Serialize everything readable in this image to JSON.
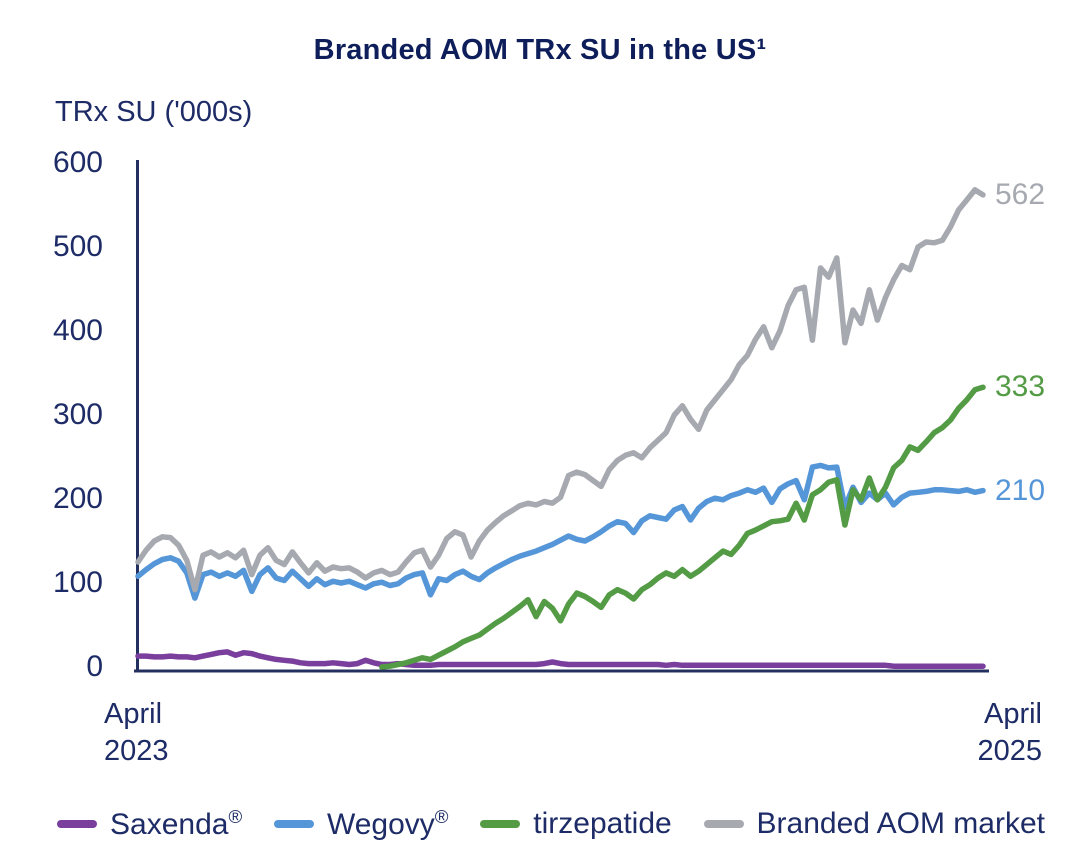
{
  "title": "Branded AOM TRx SU in the US¹",
  "colors": {
    "text_navy": "#1d2b66",
    "title_navy": "#0e1e5a",
    "axis_navy": "#23305f",
    "saxenda_purple": "#7a3f9d",
    "wegovy_blue": "#5596d8",
    "tirzepatide_green": "#539b44",
    "market_gray": "#a6a9af"
  },
  "chart_data": {
    "type": "line",
    "title": "Branded AOM TRx SU in the US¹",
    "y_axis_label": "TRx SU ('000s)",
    "ylim": [
      0,
      600
    ],
    "y_ticks": [
      600,
      500,
      400,
      300,
      200,
      100,
      0
    ],
    "grid": false,
    "legend_position": "bottom",
    "x_axis_note": "weekly points, April 2023 to April 2025",
    "x_start_label": {
      "line1": "April",
      "line2": "2023"
    },
    "x_end_label": {
      "line1": "April",
      "line2": "2025"
    },
    "series": [
      {
        "name": "Saxenda®",
        "color": "#7a3f9d",
        "end_label": null,
        "values": [
          13,
          13,
          12,
          12,
          13,
          12,
          12,
          11,
          13,
          15,
          17,
          18,
          14,
          17,
          16,
          13,
          11,
          9,
          8,
          7,
          5,
          4,
          4,
          4,
          5,
          4,
          3,
          4,
          8,
          5,
          3,
          3,
          4,
          3,
          2,
          2,
          2,
          3,
          3,
          3,
          3,
          3,
          3,
          3,
          3,
          3,
          3,
          3,
          3,
          3,
          4,
          6,
          4,
          3,
          3,
          3,
          3,
          3,
          3,
          3,
          3,
          3,
          3,
          3,
          3,
          2,
          3,
          2,
          2,
          2,
          2,
          2,
          2,
          2,
          2,
          2,
          2,
          2,
          2,
          2,
          2,
          2,
          2,
          2,
          2,
          2,
          2,
          2,
          2,
          2,
          2,
          2,
          2,
          1,
          1,
          1,
          1,
          1,
          1,
          1,
          1,
          1,
          1,
          1,
          1
        ]
      },
      {
        "name": "Wegovy®",
        "color": "#5596d8",
        "end_label": "210",
        "values": [
          108,
          116,
          123,
          128,
          130,
          126,
          112,
          82,
          110,
          113,
          108,
          112,
          108,
          115,
          90,
          110,
          118,
          106,
          103,
          114,
          105,
          96,
          105,
          98,
          102,
          100,
          102,
          98,
          94,
          99,
          101,
          97,
          99,
          106,
          110,
          112,
          86,
          105,
          103,
          110,
          114,
          108,
          104,
          112,
          118,
          123,
          128,
          132,
          135,
          138,
          142,
          146,
          151,
          156,
          152,
          150,
          155,
          161,
          168,
          173,
          171,
          160,
          174,
          180,
          178,
          176,
          187,
          191,
          175,
          189,
          197,
          201,
          199,
          204,
          207,
          211,
          208,
          213,
          196,
          212,
          218,
          222,
          199,
          238,
          240,
          237,
          238,
          190,
          214,
          196,
          207,
          199,
          207,
          193,
          202,
          207,
          208,
          209,
          211,
          211,
          210,
          209,
          211,
          208,
          210
        ]
      },
      {
        "name": "tirzepatide",
        "color": "#539b44",
        "end_label": "333",
        "values": [
          null,
          null,
          null,
          null,
          null,
          null,
          null,
          null,
          null,
          null,
          null,
          null,
          null,
          null,
          null,
          null,
          null,
          null,
          null,
          null,
          null,
          null,
          null,
          null,
          null,
          null,
          null,
          null,
          null,
          null,
          0,
          1,
          3,
          5,
          8,
          11,
          9,
          14,
          19,
          24,
          30,
          34,
          38,
          45,
          52,
          58,
          65,
          72,
          80,
          60,
          78,
          70,
          55,
          75,
          88,
          84,
          78,
          71,
          86,
          92,
          88,
          81,
          92,
          98,
          106,
          112,
          108,
          116,
          108,
          114,
          122,
          130,
          138,
          134,
          145,
          159,
          163,
          168,
          173,
          174,
          176,
          195,
          175,
          205,
          211,
          220,
          223,
          169,
          211,
          199,
          225,
          199,
          214,
          237,
          246,
          262,
          258,
          268,
          279,
          285,
          294,
          308,
          318,
          330,
          333
        ]
      },
      {
        "name": "Branded AOM market",
        "color": "#a6a9af",
        "end_label": "562",
        "values": [
          125,
          139,
          150,
          155,
          154,
          145,
          127,
          92,
          133,
          137,
          131,
          136,
          130,
          139,
          110,
          133,
          142,
          127,
          122,
          137,
          124,
          112,
          124,
          114,
          119,
          117,
          118,
          113,
          106,
          112,
          115,
          110,
          113,
          125,
          136,
          139,
          119,
          133,
          153,
          161,
          157,
          131,
          150,
          163,
          172,
          180,
          186,
          192,
          195,
          193,
          197,
          195,
          202,
          228,
          232,
          229,
          222,
          215,
          235,
          246,
          252,
          255,
          249,
          261,
          270,
          279,
          300,
          311,
          295,
          283,
          306,
          318,
          330,
          342,
          360,
          371,
          390,
          405,
          380,
          400,
          430,
          449,
          452,
          389,
          475,
          464,
          487,
          386,
          425,
          409,
          449,
          413,
          440,
          461,
          478,
          473,
          500,
          506,
          505,
          508,
          524,
          544,
          556,
          568,
          562
        ]
      }
    ]
  }
}
